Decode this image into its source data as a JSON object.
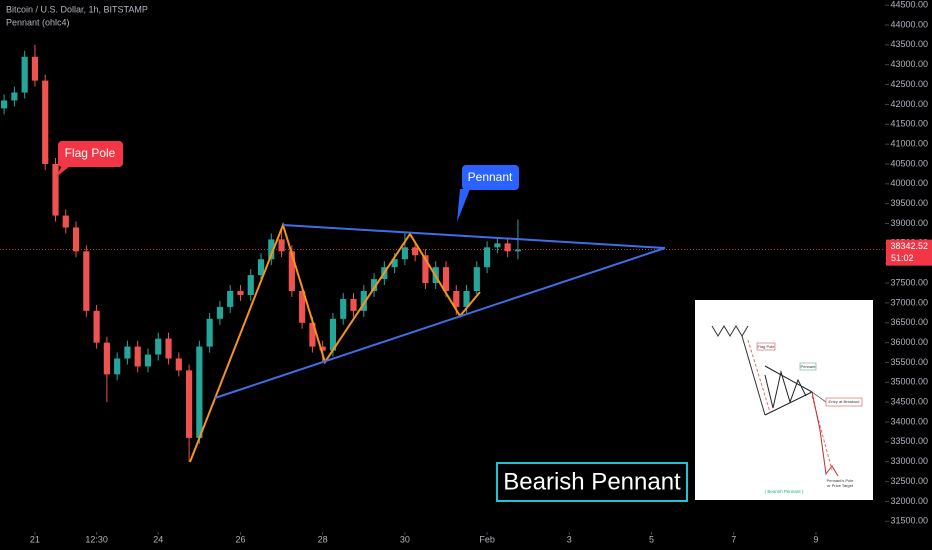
{
  "chart_data": {
    "type": "candlestick",
    "header": [
      "Bitcoin / U.S. Dollar, 1h, BITSTAMP",
      "Pennant (ohlc4)"
    ],
    "x": [
      -0.75,
      -0.5,
      -0.25,
      0,
      0.25,
      0.5,
      0.75,
      1,
      1.25,
      1.5,
      1.75,
      2,
      2.25,
      2.5,
      2.75,
      3,
      3.25,
      3.5,
      3.75,
      4,
      4.25,
      4.5,
      4.75,
      5,
      5.25,
      5.5,
      5.75,
      6,
      6.25,
      6.5,
      6.75,
      7,
      7.25,
      7.5,
      7.75,
      8,
      8.25,
      8.5,
      8.75,
      9,
      9.25,
      9.5,
      9.75,
      10,
      10.25,
      10.5,
      10.75,
      11,
      11.25,
      11.5,
      11.75
    ],
    "open": [
      41900,
      42100,
      42300,
      43200,
      42600,
      40500,
      39200,
      38900,
      38300,
      36800,
      36000,
      35200,
      35600,
      35900,
      35400,
      35700,
      36100,
      35600,
      35300,
      33600,
      35900,
      36600,
      36900,
      37300,
      37200,
      37700,
      38100,
      38600,
      38300,
      37300,
      36500,
      35900,
      35800,
      36600,
      37100,
      36800,
      37300,
      37600,
      37900,
      38100,
      38400,
      38200,
      37500,
      37900,
      37300,
      36900,
      37300,
      37900,
      38400,
      38500,
      38300
    ],
    "high": [
      42250,
      42450,
      43350,
      43500,
      42750,
      40650,
      39350,
      39050,
      38450,
      36950,
      36150,
      35750,
      36050,
      36050,
      35850,
      36250,
      36250,
      35750,
      35450,
      36050,
      36750,
      37050,
      37450,
      37450,
      37850,
      38250,
      38750,
      38900,
      38450,
      37450,
      36650,
      36050,
      36750,
      37250,
      37250,
      37450,
      37750,
      38050,
      38250,
      38800,
      38550,
      38350,
      38050,
      38050,
      37450,
      37450,
      38050,
      38550,
      38650,
      38650,
      39100
    ],
    "low": [
      41750,
      41950,
      42150,
      42450,
      40350,
      39050,
      38750,
      38150,
      36650,
      35850,
      34500,
      35050,
      35450,
      35250,
      35250,
      35550,
      35450,
      35150,
      33000,
      33450,
      35750,
      36450,
      36750,
      37050,
      37050,
      37550,
      37950,
      38150,
      37150,
      36350,
      35750,
      35500,
      35650,
      36450,
      36650,
      36650,
      37150,
      37450,
      37750,
      37950,
      38050,
      37350,
      37350,
      37150,
      36700,
      36750,
      37150,
      37750,
      38250,
      38150,
      38100
    ],
    "close": [
      42100,
      42300,
      43200,
      42600,
      40500,
      39200,
      38900,
      38300,
      36800,
      36000,
      35200,
      35600,
      35900,
      35400,
      35700,
      36100,
      35600,
      35300,
      33600,
      35900,
      36600,
      36900,
      37300,
      37200,
      37700,
      38100,
      38600,
      38300,
      37300,
      36500,
      35900,
      35800,
      36600,
      37100,
      36800,
      37300,
      37600,
      37900,
      38100,
      38400,
      38200,
      37500,
      37900,
      37300,
      36900,
      37300,
      37900,
      38400,
      38500,
      38300,
      38342.52
    ],
    "up_color": "#26a69a",
    "down_color": "#ef5350",
    "xlim": [
      -0.85,
      20.68
    ],
    "xticks": [
      {
        "value": 0,
        "label": "21"
      },
      {
        "value": 1.5,
        "label": "12:30"
      },
      {
        "value": 3,
        "label": "24"
      },
      {
        "value": 5,
        "label": "26"
      },
      {
        "value": 7,
        "label": "28"
      },
      {
        "value": 9,
        "label": "30"
      },
      {
        "value": 11,
        "label": "Feb"
      },
      {
        "value": 13,
        "label": "3"
      },
      {
        "value": 15,
        "label": "5"
      },
      {
        "value": 17,
        "label": "7"
      },
      {
        "value": 19,
        "label": "9"
      }
    ],
    "ylim": [
      31280,
      44630
    ],
    "yticks": [
      {
        "value": 31500,
        "label": "31500.00"
      },
      {
        "value": 32000,
        "label": "32000.00"
      },
      {
        "value": 32500,
        "label": "32500.00"
      },
      {
        "value": 33000,
        "label": "33000.00"
      },
      {
        "value": 33500,
        "label": "33500.00"
      },
      {
        "value": 34000,
        "label": "34000.00"
      },
      {
        "value": 34500,
        "label": "34500.00"
      },
      {
        "value": 35000,
        "label": "35000.00"
      },
      {
        "value": 35500,
        "label": "35500.00"
      },
      {
        "value": 36000,
        "label": "36000.00"
      },
      {
        "value": 36500,
        "label": "36500.00"
      },
      {
        "value": 37000,
        "label": "37000.00"
      },
      {
        "value": 37500,
        "label": "37500.00"
      },
      {
        "value": 38000,
        "label": "38000.00"
      },
      {
        "value": 38500,
        "label": "38500.00"
      },
      {
        "value": 39000,
        "label": "39000.00"
      },
      {
        "value": 39500,
        "label": "39500.00"
      },
      {
        "value": 40000,
        "label": "40000.00"
      },
      {
        "value": 40500,
        "label": "40500.00"
      },
      {
        "value": 41000,
        "label": "41000.00"
      },
      {
        "value": 41500,
        "label": "41500.00"
      },
      {
        "value": 42000,
        "label": "42000.00"
      },
      {
        "value": 42500,
        "label": "42500.00"
      },
      {
        "value": 43000,
        "label": "43000.00"
      },
      {
        "value": 43500,
        "label": "43500.00"
      },
      {
        "value": 44000,
        "label": "44000.00"
      },
      {
        "value": 44500,
        "label": "44500.00"
      }
    ],
    "last_price": 38342.52,
    "countdown": "51:02",
    "annotations": {
      "flag_pole": "Flag Pole",
      "pennant": "Pennant",
      "banner": "Bearish Pennant"
    },
    "inset": {
      "flag_pole": "Flag Pole",
      "pennant": "Pennant",
      "entry": "Entry at Breakout",
      "target_1": "Pennant's Pole",
      "target_2": "or Price Target",
      "caption": "( Bearish Pennant )"
    }
  }
}
